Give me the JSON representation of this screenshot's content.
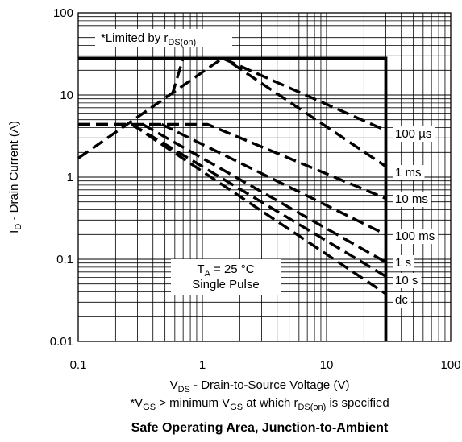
{
  "chart_data": {
    "type": "line",
    "title": "Safe Operating Area, Junction-to-Ambient",
    "xlabel": {
      "main": "V",
      "sub": "DS",
      "rest": " - Drain-to-Source Voltage (V)"
    },
    "ylabel": {
      "main": "I",
      "sub": "D",
      "rest": " - Drain Current (A)"
    },
    "xscale": "log",
    "yscale": "log",
    "xlim": [
      0.1,
      100
    ],
    "ylim": [
      0.01,
      100
    ],
    "grid": true,
    "x_ticks": [
      "0.1",
      "1",
      "10",
      "100"
    ],
    "y_ticks": [
      "0.01",
      "0.1",
      "1",
      "10",
      "100"
    ],
    "limit_note": {
      "main": "*Limited by r",
      "sub": "DS(on)"
    },
    "conditions": {
      "line1_main": "T",
      "line1_sub": "A",
      "line1_rest": " = 25 °C",
      "line2": "Single Pulse"
    },
    "footnote": {
      "a": "*V",
      "a_sub": "GS",
      "b": " > minimum V",
      "b_sub": "GS",
      "c": " at which r",
      "c_sub": "DS(on)",
      "d": " is specified"
    },
    "boundary": {
      "style": "solid",
      "points": [
        [
          0.1,
          28
        ],
        [
          30,
          28
        ],
        [
          30,
          0.01
        ]
      ]
    },
    "series": [
      {
        "name": "100 µs",
        "points": [
          [
            0.1,
            1.7
          ],
          [
            1.45,
            28
          ],
          [
            30,
            3.7
          ]
        ]
      },
      {
        "name": "1 ms",
        "points": [
          [
            0.57,
            10
          ],
          [
            0.7,
            28
          ],
          [
            1.5,
            28
          ],
          [
            30,
            1.35
          ]
        ]
      },
      {
        "name": "10 ms",
        "points": [
          [
            0.1,
            4.4
          ],
          [
            0.6,
            4.4
          ],
          [
            1.1,
            4.4
          ],
          [
            30,
            0.55
          ]
        ]
      },
      {
        "name": "100 ms",
        "points": [
          [
            0.47,
            4.4
          ],
          [
            30,
            0.2
          ]
        ]
      },
      {
        "name": "1 s",
        "points": [
          [
            0.33,
            4.4
          ],
          [
            30,
            0.092
          ]
        ]
      },
      {
        "name": "10 s",
        "points": [
          [
            0.27,
            4.4
          ],
          [
            30,
            0.062
          ]
        ]
      },
      {
        "name": "dc",
        "points": [
          [
            0.1,
            4.4
          ],
          [
            0.27,
            4.4
          ],
          [
            30,
            0.038
          ]
        ]
      }
    ]
  },
  "colors": {
    "line": "#000000",
    "grid": "#000000",
    "background": "#ffffff"
  }
}
